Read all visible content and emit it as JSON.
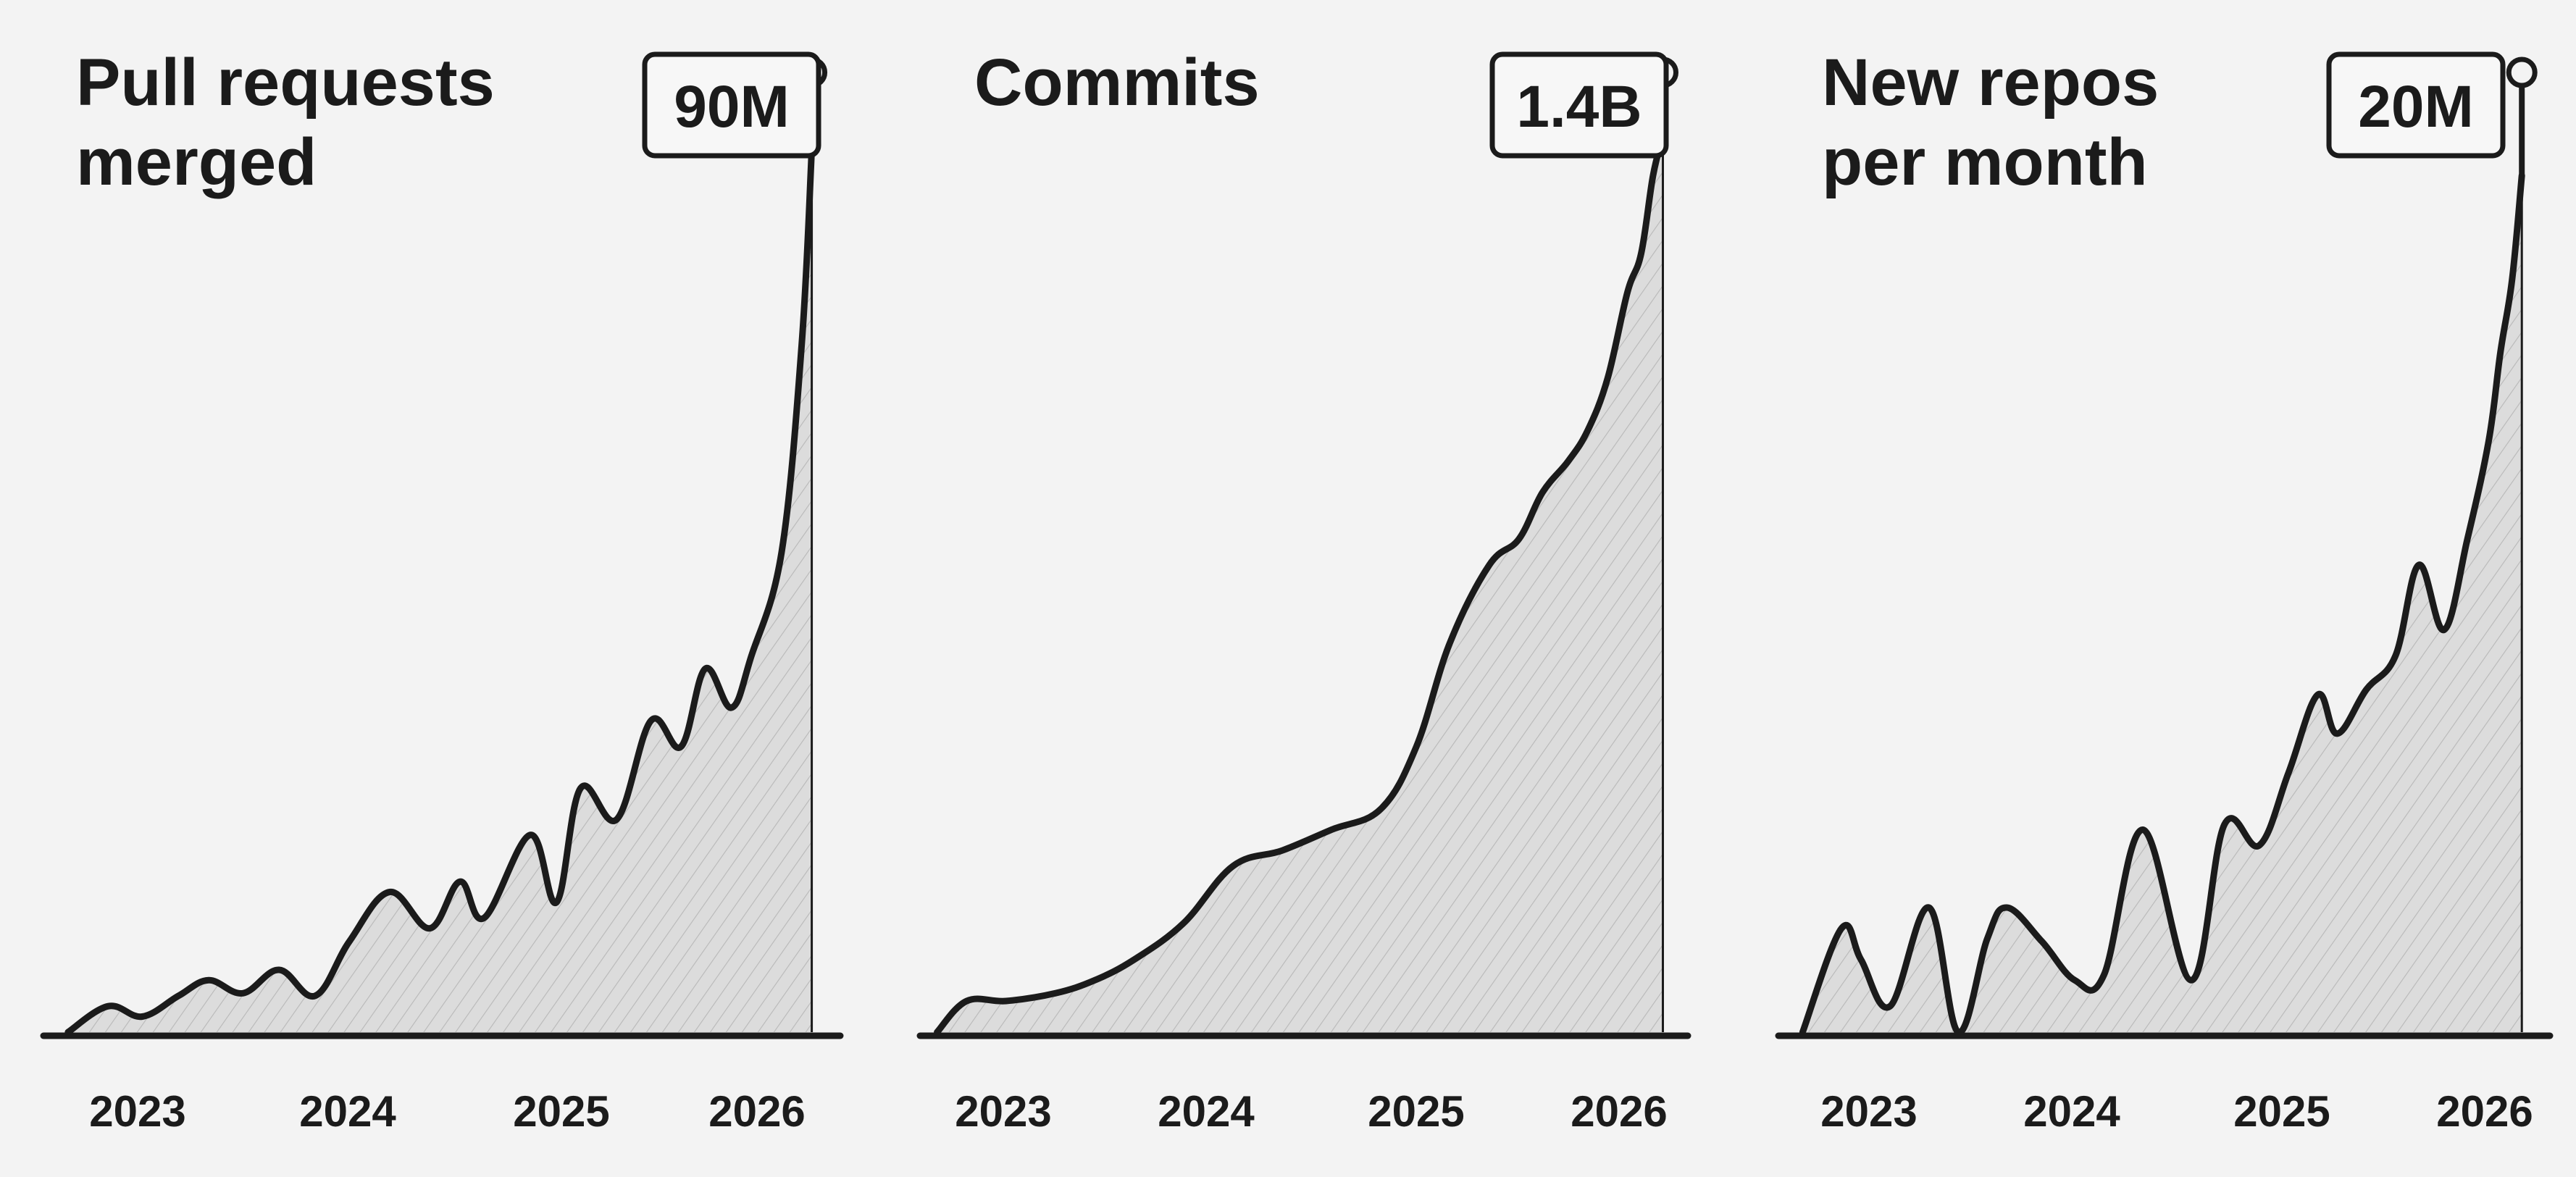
{
  "colors": {
    "background": "#f3f3f3",
    "ink": "#1b1b1b",
    "fill": "#c9c9c9",
    "hatch": "#9a9a9a"
  },
  "chart_data": [
    {
      "type": "area",
      "title": "Pull requests\nmerged",
      "title_lines": [
        "Pull requests",
        "merged"
      ],
      "badge": "90M",
      "tick_labels": [
        "2023",
        "2024",
        "2025",
        "2026"
      ],
      "x": [
        2022.55,
        2022.75,
        2022.92,
        2023.1,
        2023.25,
        2023.42,
        2023.6,
        2023.78,
        2023.95,
        2024.15,
        2024.35,
        2024.5,
        2024.62,
        2024.85,
        2024.98,
        2025.1,
        2025.28,
        2025.45,
        2025.6,
        2025.72,
        2025.85,
        2025.95,
        2026.1,
        2026.2,
        2026.25
      ],
      "values": [
        0,
        10,
        6,
        14,
        20,
        15,
        24,
        14,
        35,
        54,
        40,
        58,
        44,
        76,
        50,
        94,
        82,
        120,
        110,
        140,
        125,
        145,
        185,
        265,
        340
      ],
      "ylim": [
        0,
        360
      ],
      "xlim": [
        2022.5,
        2026.32
      ],
      "grid": false,
      "legend": "none"
    },
    {
      "type": "area",
      "title": "Commits",
      "title_lines": [
        "Commits"
      ],
      "badge": "1.4B",
      "tick_labels": [
        "2023",
        "2024",
        "2025",
        "2026"
      ],
      "x": [
        2022.55,
        2022.7,
        2022.9,
        2023.15,
        2023.35,
        2023.55,
        2023.8,
        2024.05,
        2024.3,
        2024.55,
        2024.8,
        2024.98,
        2025.15,
        2025.35,
        2025.5,
        2025.62,
        2025.75,
        2025.85,
        2025.95,
        2026.05,
        2026.12,
        2026.18,
        2026.23
      ],
      "values": [
        0,
        12,
        12,
        15,
        20,
        28,
        42,
        64,
        70,
        78,
        86,
        110,
        150,
        180,
        190,
        208,
        220,
        232,
        252,
        285,
        300,
        330,
        345
      ],
      "ylim": [
        0,
        360
      ],
      "xlim": [
        2022.5,
        2026.32
      ],
      "grid": false,
      "legend": "none"
    },
    {
      "type": "area",
      "title": "New repos\nper month",
      "title_lines": [
        "New repos",
        "per month"
      ],
      "badge": "20M",
      "tick_labels": [
        "2023",
        "2024",
        "2025",
        "2026"
      ],
      "x": [
        2022.55,
        2022.75,
        2022.85,
        2023.0,
        2023.2,
        2023.35,
        2023.5,
        2023.6,
        2023.78,
        2023.95,
        2024.1,
        2024.3,
        2024.55,
        2024.72,
        2024.9,
        2025.05,
        2025.2,
        2025.3,
        2025.45,
        2025.6,
        2025.72,
        2025.85,
        2025.97,
        2026.08,
        2026.14,
        2026.2,
        2026.25
      ],
      "values": [
        0,
        40,
        28,
        10,
        48,
        0,
        36,
        48,
        35,
        20,
        22,
        78,
        20,
        80,
        72,
        100,
        130,
        115,
        132,
        145,
        180,
        155,
        190,
        228,
        262,
        290,
        330
      ],
      "ylim": [
        0,
        360
      ],
      "xlim": [
        2022.5,
        2026.32
      ],
      "grid": false,
      "legend": "none"
    }
  ]
}
